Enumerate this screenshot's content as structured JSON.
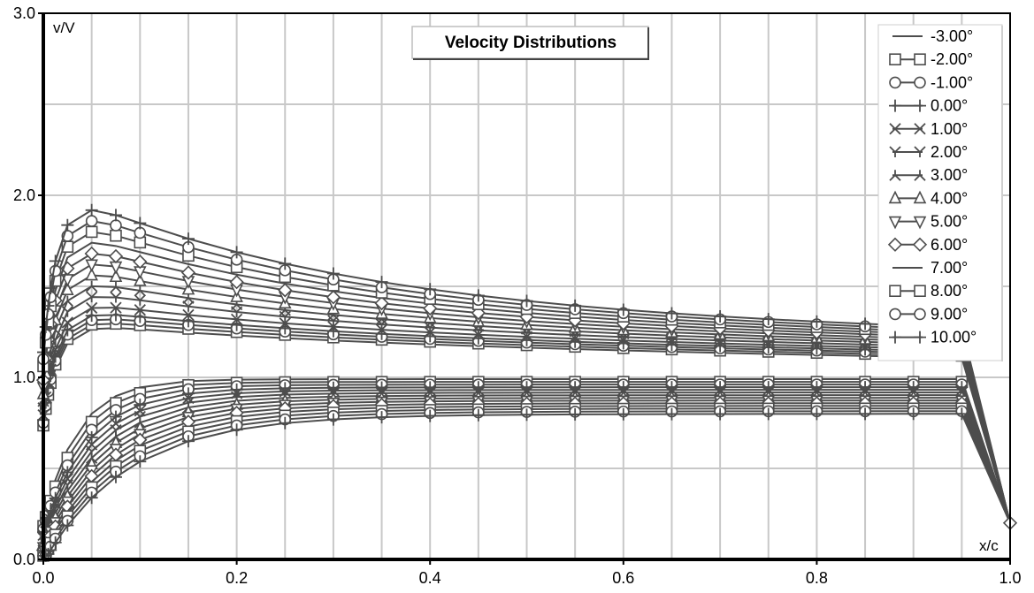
{
  "chart_data": {
    "type": "line",
    "title": "Velocity Distributions",
    "xlabel": "x/c",
    "ylabel": "v/V",
    "xlim": [
      0,
      1
    ],
    "ylim": [
      0,
      3
    ],
    "x_ticks": [
      "0.0",
      "0.2",
      "0.4",
      "0.6",
      "0.8",
      "1.0"
    ],
    "y_ticks": [
      "0.0",
      "1.0",
      "2.0",
      "3.0"
    ],
    "grid": true,
    "legend_position": "top-right",
    "line_color": "#4d4d4d",
    "x": [
      0.0,
      0.0025,
      0.005,
      0.0075,
      0.0125,
      0.025,
      0.05,
      0.075,
      0.1,
      0.15,
      0.2,
      0.25,
      0.3,
      0.35,
      0.4,
      0.45,
      0.5,
      0.55,
      0.6,
      0.65,
      0.7,
      0.75,
      0.8,
      0.85,
      0.9,
      0.95,
      1.0
    ],
    "series": [
      {
        "name": "-3.00°",
        "marker": "none"
      },
      {
        "name": "-2.00°",
        "marker": "square"
      },
      {
        "name": "-1.00°",
        "marker": "circle"
      },
      {
        "name": "0.00°",
        "marker": "plus"
      },
      {
        "name": "1.00°",
        "marker": "cross"
      },
      {
        "name": "2.00°",
        "marker": "y-down"
      },
      {
        "name": "3.00°",
        "marker": "y-up"
      },
      {
        "name": "4.00°",
        "marker": "triangle-up"
      },
      {
        "name": "5.00°",
        "marker": "triangle-down"
      },
      {
        "name": "6.00°",
        "marker": "diamond"
      },
      {
        "name": "7.00°",
        "marker": "none"
      },
      {
        "name": "8.00°",
        "marker": "square"
      },
      {
        "name": "9.00°",
        "marker": "circle"
      },
      {
        "name": "10.00°",
        "marker": "plus"
      }
    ]
  }
}
